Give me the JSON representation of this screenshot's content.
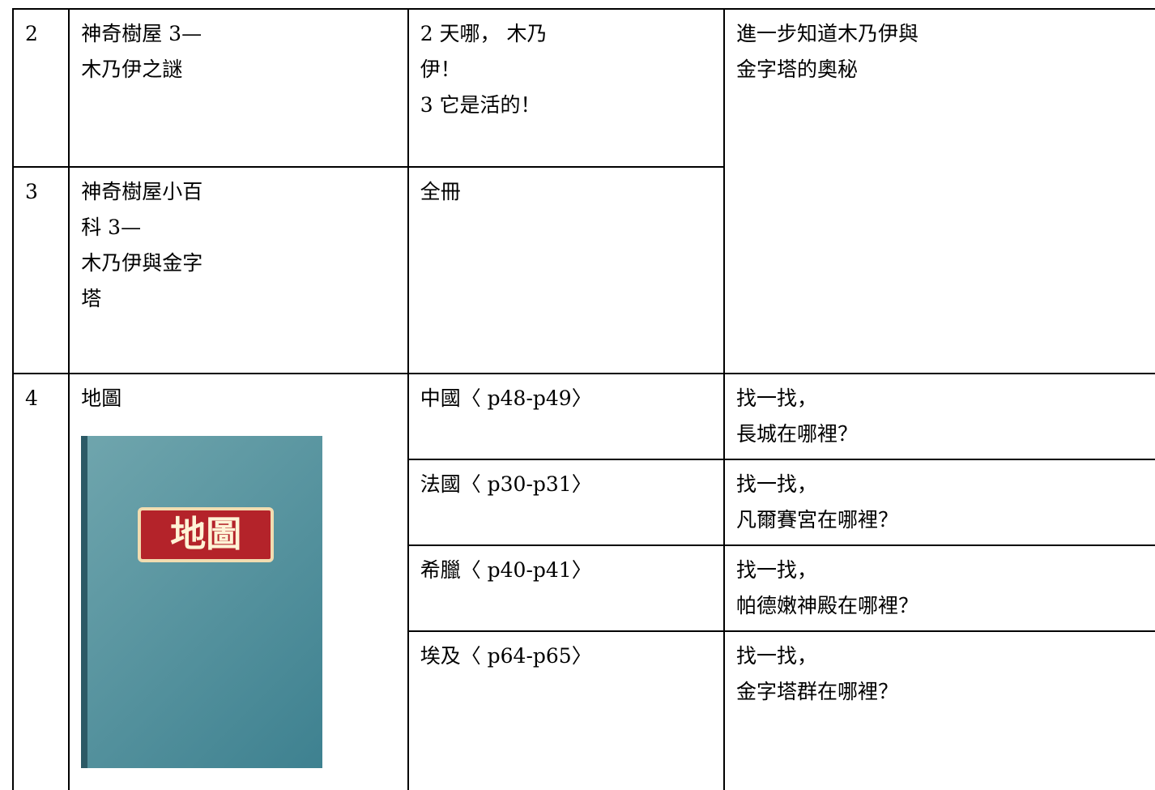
{
  "table": {
    "rows": [
      {
        "number": "2",
        "title": [
          "神奇樹屋 3—",
          "木乃伊之謎"
        ],
        "content": [
          "2 天哪， 木乃",
          "伊！",
          "3 它是活的！"
        ],
        "goal": [
          "進一步知道木乃伊與",
          "金字塔的奧秘"
        ]
      },
      {
        "number": "3",
        "title": [
          "神奇樹屋小百",
          "科 3—",
          "木乃伊與金字",
          "塔"
        ],
        "content": [
          "全冊"
        ]
      },
      {
        "number": "4",
        "title": [
          "地圖"
        ],
        "cover_title": "地圖",
        "subrows": [
          {
            "content": [
              "中國〈 p48-p49〉"
            ],
            "goal": [
              "找一找，",
              "長城在哪裡？"
            ]
          },
          {
            "content": [
              "法國〈 p30-p31〉"
            ],
            "goal": [
              "找一找，",
              "凡爾賽宮在哪裡？"
            ]
          },
          {
            "content": [
              "希臘〈 p40-p41〉"
            ],
            "goal": [
              "找一找，",
              "帕德嫩神殿在哪裡？"
            ]
          },
          {
            "content": [
              "埃及〈 p64-p65〉"
            ],
            "goal": [
              "找一找，",
              "金字塔群在哪裡？"
            ]
          }
        ]
      }
    ]
  }
}
